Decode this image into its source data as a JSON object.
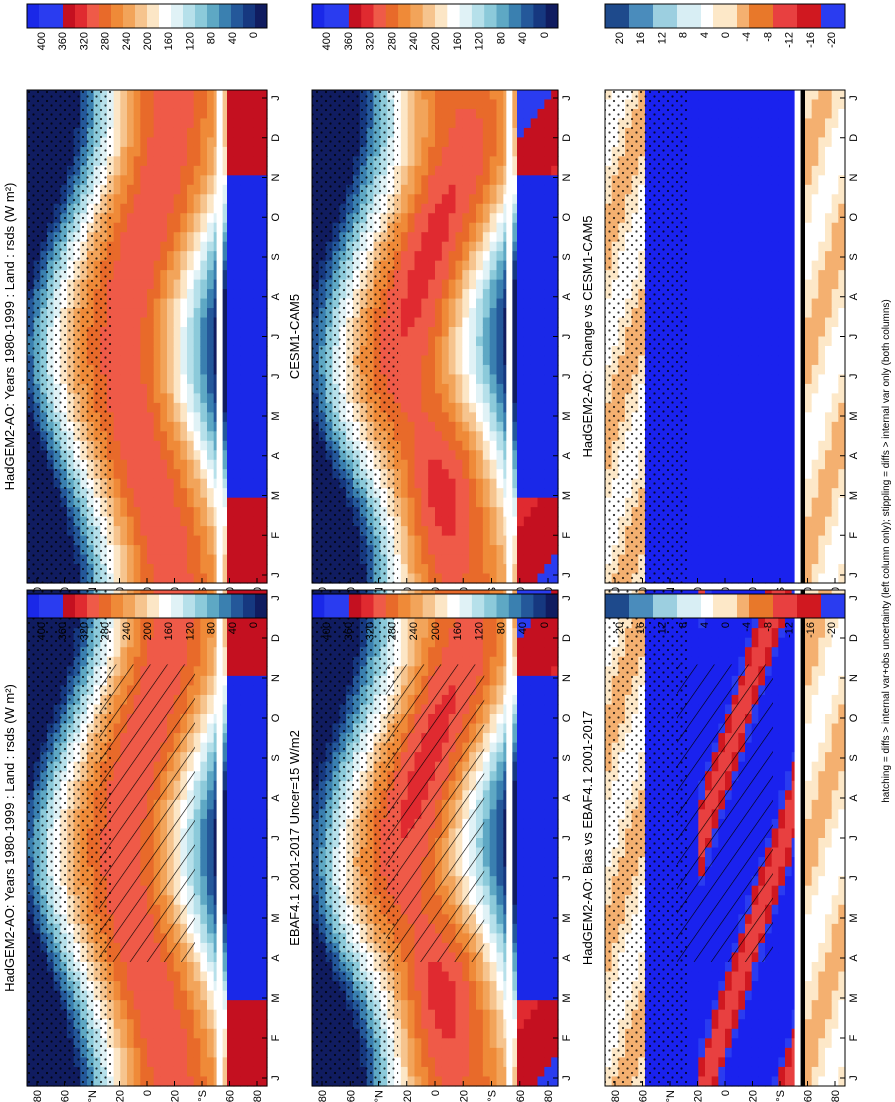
{
  "figure": {
    "footer": "hatching = diffs > internal var+obs uncertainty (left column only); stippling = diffs > internal var only (both columns)"
  },
  "scales": {
    "absolute": {
      "colors": [
        "#14148a",
        "#1f3cb4",
        "#2a5cd8",
        "#3a7fe0",
        "#4fa0e6",
        "#7fbfe6",
        "#a8d8e8",
        "#d8f0f4",
        "#ffffff",
        "#ffe8c8",
        "#fcc98a",
        "#f4a24e",
        "#e8822a",
        "#dc5a1c",
        "#d0381a",
        "#c01c1c",
        "#d41030",
        "#b00018",
        "#2050e8",
        "#1030d8"
      ]
    }
  },
  "chart_data": [
    {
      "type": "heatmap",
      "panel": "top-left",
      "title": "HadGEM2-AO: Years 1980-1999 : Land : rsds (W m²)",
      "x_ticks": [
        "J",
        "F",
        "M",
        "A",
        "M",
        "J",
        "J",
        "A",
        "S",
        "O",
        "N",
        "D",
        "J"
      ],
      "y_ticks": [
        "80",
        "60",
        "°N",
        "20",
        "0",
        "20",
        "°S",
        "60",
        "80"
      ],
      "colorbar": {
        "ticks": [
          "400",
          "360",
          "320",
          "280",
          "240",
          "200",
          "160",
          "120",
          "80",
          "40",
          "0"
        ],
        "range": [
          0,
          400
        ],
        "step": 20
      },
      "hatching": true,
      "stippling": true
    },
    {
      "type": "heatmap",
      "panel": "top-right",
      "title": "HadGEM2-AO: Years 1980-1999 : Land : rsds (W m²)",
      "x_ticks": [
        "J",
        "F",
        "M",
        "A",
        "M",
        "J",
        "J",
        "A",
        "S",
        "O",
        "N",
        "D",
        "J"
      ],
      "y_ticks": [
        "80",
        "60",
        "°N",
        "20",
        "0",
        "20",
        "°S",
        "60",
        "80"
      ],
      "colorbar": {
        "ticks": [
          "400",
          "360",
          "320",
          "280",
          "240",
          "200",
          "160",
          "120",
          "80",
          "40",
          "0"
        ],
        "range": [
          0,
          400
        ],
        "step": 20
      },
      "hatching": false,
      "stippling": true
    },
    {
      "type": "heatmap",
      "panel": "middle-left",
      "title": "EBAF4.1 2001-2017 Uncer=15 W/m2",
      "x_ticks": [
        "J",
        "F",
        "M",
        "A",
        "M",
        "J",
        "J",
        "A",
        "S",
        "O",
        "N",
        "D",
        "J"
      ],
      "y_ticks": [
        "80",
        "60",
        "°N",
        "20",
        "0",
        "20",
        "°S",
        "60",
        "80"
      ],
      "colorbar": {
        "ticks": [
          "400",
          "360",
          "320",
          "280",
          "240",
          "200",
          "160",
          "120",
          "80",
          "40",
          "0"
        ],
        "range": [
          0,
          400
        ],
        "step": 20
      },
      "hatching": true,
      "stippling": true
    },
    {
      "type": "heatmap",
      "panel": "middle-right",
      "title": "CESM1-CAM5",
      "x_ticks": [
        "J",
        "F",
        "M",
        "A",
        "M",
        "J",
        "J",
        "A",
        "S",
        "O",
        "N",
        "D",
        "J"
      ],
      "y_ticks": [
        "80",
        "60",
        "°N",
        "20",
        "0",
        "20",
        "°S",
        "60",
        "80"
      ],
      "colorbar": {
        "ticks": [
          "400",
          "360",
          "320",
          "280",
          "240",
          "200",
          "160",
          "120",
          "80",
          "40",
          "0"
        ],
        "range": [
          0,
          400
        ],
        "step": 20
      },
      "hatching": false,
      "stippling": true
    },
    {
      "type": "heatmap",
      "panel": "bottom-left",
      "title": "HadGEM2-AO: Bias vs EBAF4.1 2001-2017",
      "x_ticks": [
        "J",
        "F",
        "M",
        "A",
        "M",
        "J",
        "J",
        "A",
        "S",
        "O",
        "N",
        "D",
        "J"
      ],
      "y_ticks": [
        "80",
        "60",
        "°N",
        "20",
        "0",
        "20",
        "°S",
        "60",
        "80"
      ],
      "colorbar": {
        "ticks": [
          "20",
          "16",
          "12",
          "8",
          "4",
          "0",
          "-4",
          "-8",
          "-12",
          "-16",
          "-20"
        ],
        "range": [
          -20,
          20
        ],
        "step": 2
      },
      "hatching": true,
      "stippling": true
    },
    {
      "type": "heatmap",
      "panel": "bottom-right",
      "title": "HadGEM2-AO: Change vs CESM1-CAM5",
      "x_ticks": [
        "J",
        "F",
        "M",
        "A",
        "M",
        "J",
        "J",
        "A",
        "S",
        "O",
        "N",
        "D",
        "J"
      ],
      "y_ticks": [
        "80",
        "60",
        "°N",
        "20",
        "0",
        "20",
        "°S",
        "60",
        "80"
      ],
      "colorbar": {
        "ticks": [
          "20",
          "16",
          "12",
          "8",
          "4",
          "0",
          "-4",
          "-8",
          "-12",
          "-16",
          "-20"
        ],
        "range": [
          -20,
          20
        ],
        "step": 2
      },
      "hatching": false,
      "stippling": true
    }
  ]
}
